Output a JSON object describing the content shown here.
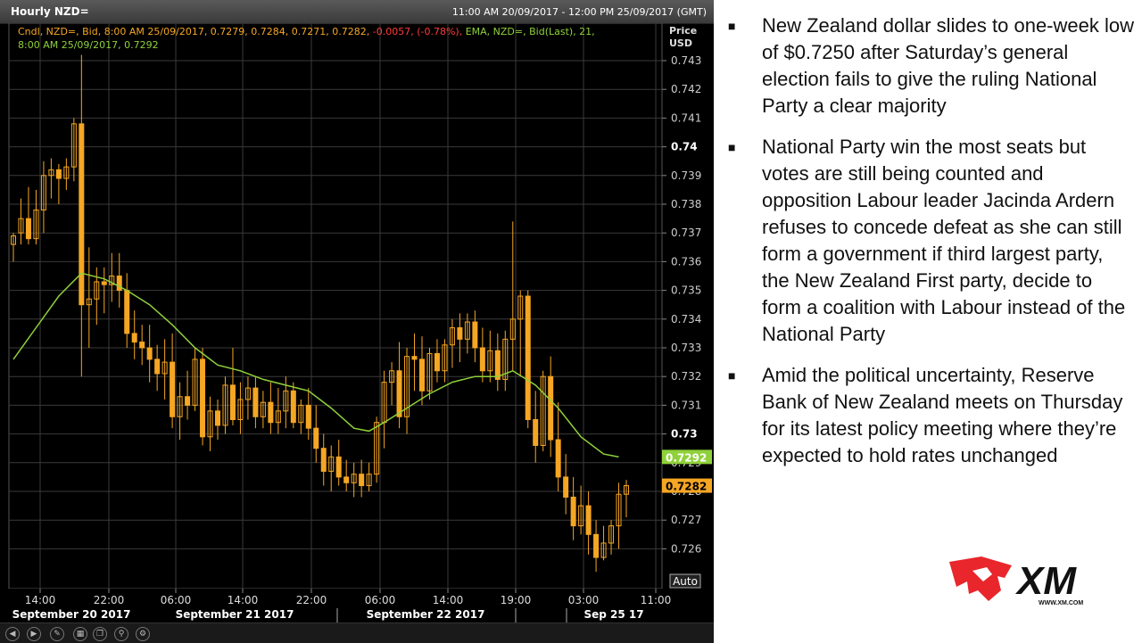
{
  "window": {
    "title": "Hourly NZD=",
    "range": "11:00 AM 20/09/2017 - 12:00 PM 25/09/2017 (GMT)"
  },
  "legend": {
    "cndl_text": "Cndl, NZD=, Bid, 8:00 AM 25/09/2017, 0.7279, 0.7284, 0.7271, 0.7282,",
    "change_text": "-0.0057, (-0.78%),",
    "ema_text": "EMA, NZD=, Bid(Last), 21,",
    "ema_line2": "8:00 AM 25/09/2017, 0.7292"
  },
  "price_axis": {
    "title": "Price",
    "unit": "USD"
  },
  "last_labels": {
    "ema": "0.7292",
    "close": "0.7282"
  },
  "auto_button": "Auto",
  "colors": {
    "candle": "#f5a623",
    "ema": "#8fd13a",
    "background": "#000000",
    "grid": "#3a3a3a"
  },
  "chart_data": {
    "type": "candlestick",
    "ylim": [
      0.725,
      0.744
    ],
    "yticks": [
      0.743,
      0.742,
      0.741,
      0.74,
      0.739,
      0.738,
      0.737,
      0.736,
      0.735,
      0.734,
      0.733,
      0.732,
      0.731,
      0.73,
      0.729,
      0.728,
      0.727,
      0.726
    ],
    "ytick_labels": [
      "0.743",
      "0.742",
      "0.741",
      "0.74",
      "0.739",
      "0.738",
      "0.737",
      "0.736",
      "0.735",
      "0.734",
      "0.733",
      "0.732",
      "0.731",
      "0.73",
      "0.729",
      "0.728",
      "0.727",
      "0.726"
    ],
    "xtick_labels": [
      "14:00",
      "22:00",
      "06:00",
      "14:00",
      "22:00",
      "06:00",
      "14:00",
      "19:00",
      "03:00",
      "11:00"
    ],
    "date_labels": [
      "September 20 2017",
      "September 21 2017",
      "September 22 2017",
      "Sep 25 17"
    ],
    "candles": [
      [
        0.7366,
        0.737,
        0.736,
        0.7369
      ],
      [
        0.737,
        0.7382,
        0.7366,
        0.7375
      ],
      [
        0.7375,
        0.7386,
        0.7366,
        0.7368
      ],
      [
        0.7368,
        0.7385,
        0.7366,
        0.7378
      ],
      [
        0.7378,
        0.7395,
        0.737,
        0.739
      ],
      [
        0.739,
        0.7396,
        0.7382,
        0.7392
      ],
      [
        0.7392,
        0.7394,
        0.738,
        0.7389
      ],
      [
        0.7389,
        0.7396,
        0.7385,
        0.7393
      ],
      [
        0.7393,
        0.741,
        0.7388,
        0.7408
      ],
      [
        0.7408,
        0.7432,
        0.732,
        0.7345
      ],
      [
        0.7345,
        0.7365,
        0.733,
        0.7347
      ],
      [
        0.7347,
        0.7358,
        0.7338,
        0.7353
      ],
      [
        0.7353,
        0.7358,
        0.7342,
        0.7352
      ],
      [
        0.7352,
        0.7363,
        0.7346,
        0.7355
      ],
      [
        0.7355,
        0.7363,
        0.7344,
        0.735
      ],
      [
        0.735,
        0.7356,
        0.733,
        0.7335
      ],
      [
        0.7335,
        0.7343,
        0.7326,
        0.7332
      ],
      [
        0.7332,
        0.7338,
        0.7324,
        0.733
      ],
      [
        0.733,
        0.7338,
        0.7318,
        0.7326
      ],
      [
        0.7326,
        0.7331,
        0.7315,
        0.7321
      ],
      [
        0.7321,
        0.7333,
        0.7312,
        0.7325
      ],
      [
        0.7325,
        0.7335,
        0.7302,
        0.7306
      ],
      [
        0.7306,
        0.7318,
        0.7298,
        0.7313
      ],
      [
        0.7313,
        0.7322,
        0.7305,
        0.731
      ],
      [
        0.731,
        0.733,
        0.7308,
        0.7326
      ],
      [
        0.7326,
        0.733,
        0.7296,
        0.7299
      ],
      [
        0.7299,
        0.7313,
        0.7294,
        0.7308
      ],
      [
        0.7308,
        0.7312,
        0.7298,
        0.7303
      ],
      [
        0.7303,
        0.732,
        0.73,
        0.7317
      ],
      [
        0.7317,
        0.733,
        0.7303,
        0.7305
      ],
      [
        0.7305,
        0.7318,
        0.73,
        0.7312
      ],
      [
        0.7312,
        0.732,
        0.7305,
        0.7316
      ],
      [
        0.7316,
        0.732,
        0.7302,
        0.7306
      ],
      [
        0.7306,
        0.7315,
        0.7302,
        0.7311
      ],
      [
        0.7311,
        0.7318,
        0.73,
        0.7304
      ],
      [
        0.7304,
        0.7316,
        0.73,
        0.7308
      ],
      [
        0.7308,
        0.732,
        0.7302,
        0.7315
      ],
      [
        0.7315,
        0.7318,
        0.7302,
        0.7304
      ],
      [
        0.7304,
        0.7312,
        0.73,
        0.731
      ],
      [
        0.731,
        0.7316,
        0.7298,
        0.7302
      ],
      [
        0.7302,
        0.731,
        0.729,
        0.7295
      ],
      [
        0.7295,
        0.73,
        0.7282,
        0.7287
      ],
      [
        0.7287,
        0.7296,
        0.728,
        0.7292
      ],
      [
        0.7292,
        0.7298,
        0.7282,
        0.7285
      ],
      [
        0.7285,
        0.7291,
        0.728,
        0.7283
      ],
      [
        0.7283,
        0.729,
        0.7278,
        0.7286
      ],
      [
        0.7286,
        0.7291,
        0.7278,
        0.7282
      ],
      [
        0.7282,
        0.729,
        0.728,
        0.7286
      ],
      [
        0.7286,
        0.7306,
        0.7283,
        0.7304
      ],
      [
        0.7304,
        0.7322,
        0.7295,
        0.7318
      ],
      [
        0.7318,
        0.7325,
        0.731,
        0.7322
      ],
      [
        0.7322,
        0.7332,
        0.7302,
        0.7306
      ],
      [
        0.7306,
        0.733,
        0.73,
        0.7327
      ],
      [
        0.7327,
        0.7335,
        0.7315,
        0.7326
      ],
      [
        0.7326,
        0.7334,
        0.731,
        0.7315
      ],
      [
        0.7315,
        0.733,
        0.7312,
        0.7328
      ],
      [
        0.7328,
        0.7333,
        0.7318,
        0.7322
      ],
      [
        0.7322,
        0.7333,
        0.7318,
        0.7331
      ],
      [
        0.7331,
        0.734,
        0.7323,
        0.7337
      ],
      [
        0.7337,
        0.7342,
        0.7325,
        0.7333
      ],
      [
        0.7333,
        0.7342,
        0.7328,
        0.7339
      ],
      [
        0.7339,
        0.7343,
        0.7325,
        0.733
      ],
      [
        0.733,
        0.7337,
        0.7318,
        0.7322
      ],
      [
        0.7322,
        0.7336,
        0.7318,
        0.7329
      ],
      [
        0.7329,
        0.7335,
        0.7315,
        0.7319
      ],
      [
        0.7319,
        0.7336,
        0.7315,
        0.7333
      ],
      [
        0.7333,
        0.7374,
        0.7322,
        0.734
      ],
      [
        0.734,
        0.735,
        0.732,
        0.7348
      ],
      [
        0.7348,
        0.735,
        0.7302,
        0.7305
      ],
      [
        0.7305,
        0.7315,
        0.729,
        0.7296
      ],
      [
        0.7296,
        0.7322,
        0.7294,
        0.732
      ],
      [
        0.732,
        0.7327,
        0.7292,
        0.7298
      ],
      [
        0.7298,
        0.7311,
        0.728,
        0.7285
      ],
      [
        0.7285,
        0.7293,
        0.7272,
        0.7278
      ],
      [
        0.7278,
        0.7285,
        0.7263,
        0.7268
      ],
      [
        0.7268,
        0.7282,
        0.7265,
        0.7275
      ],
      [
        0.7275,
        0.728,
        0.7258,
        0.7265
      ],
      [
        0.7265,
        0.727,
        0.7252,
        0.7257
      ],
      [
        0.7257,
        0.7268,
        0.7256,
        0.7262
      ],
      [
        0.7262,
        0.727,
        0.7258,
        0.7268
      ],
      [
        0.7268,
        0.7283,
        0.726,
        0.7279
      ],
      [
        0.7279,
        0.7284,
        0.7271,
        0.7282
      ]
    ],
    "ema": [
      [
        0,
        0.7326
      ],
      [
        3,
        0.7337
      ],
      [
        6,
        0.7348
      ],
      [
        9,
        0.7356
      ],
      [
        12,
        0.7354
      ],
      [
        15,
        0.735
      ],
      [
        18,
        0.7345
      ],
      [
        21,
        0.7338
      ],
      [
        24,
        0.733
      ],
      [
        27,
        0.7324
      ],
      [
        30,
        0.7322
      ],
      [
        33,
        0.7319
      ],
      [
        36,
        0.7317
      ],
      [
        39,
        0.7315
      ],
      [
        42,
        0.7309
      ],
      [
        45,
        0.7302
      ],
      [
        47,
        0.7301
      ],
      [
        49,
        0.7304
      ],
      [
        52,
        0.7309
      ],
      [
        55,
        0.7314
      ],
      [
        58,
        0.7318
      ],
      [
        61,
        0.732
      ],
      [
        64,
        0.732
      ],
      [
        66,
        0.7322
      ],
      [
        69,
        0.7317
      ],
      [
        72,
        0.7309
      ],
      [
        75,
        0.7299
      ],
      [
        78,
        0.7293
      ],
      [
        80,
        0.7292
      ]
    ]
  },
  "bullets": [
    "New Zealand dollar slides to one-week low of $0.7250 after Saturday’s general election fails to give the ruling National Party a clear majority",
    "National Party win the most seats but votes are still being counted and opposition Labour leader Jacinda Ardern refuses to concede defeat as she can still form a government if third largest party, the New Zealand First party, decide to form a coalition with Labour instead of the National Party",
    "Amid the political uncertainty, Reserve Bank of New Zealand meets on Thursday for its latest policy meeting where they’re expected to hold rates unchanged"
  ],
  "logo": {
    "brand": "XM",
    "url_text": "WWW.XM.COM",
    "icon": "bull-head-icon"
  },
  "toolbar_icons": [
    "back-icon",
    "forward-icon",
    "draw-icon",
    "layout-icon",
    "copy-icon",
    "zoom-icon",
    "settings-icon"
  ]
}
